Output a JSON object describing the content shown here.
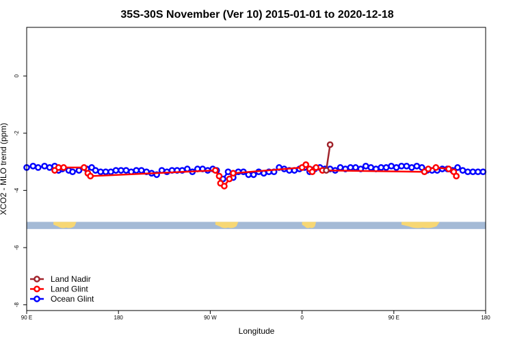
{
  "chart_data": {
    "type": "line",
    "title": "35S-30S November (Ver 10)   2015-01-01 to 2020-12-18",
    "xlabel": "Longitude",
    "ylabel": "XCO2 - MLO trend (ppm)",
    "xlim": [
      90,
      450
    ],
    "ylim": [
      -8.2,
      1.7
    ],
    "x_ticks": [
      {
        "value": 90,
        "label": "90 E"
      },
      {
        "value": 162,
        "label": "180"
      },
      {
        "value": 234,
        "label": "90 W"
      },
      {
        "value": 306,
        "label": "0"
      },
      {
        "value": 378,
        "label": "90 E"
      },
      {
        "value": 450,
        "label": "180"
      }
    ],
    "y_ticks": [
      {
        "value": 0,
        "label": "0"
      },
      {
        "value": -2,
        "label": "-2"
      },
      {
        "value": -4,
        "label": "-4"
      },
      {
        "value": -6,
        "label": "-6"
      },
      {
        "value": -8,
        "label": "-8"
      }
    ],
    "land_band": {
      "y_top": -5.1,
      "y_bottom": -5.35,
      "ocean_color": "#a4bad6",
      "land_color": "#f7d774"
    },
    "land_segments": [
      [
        111,
        129
      ],
      [
        238,
        256
      ],
      [
        306,
        317
      ],
      [
        384,
        414
      ]
    ],
    "legend_position": "bottom-left",
    "series": [
      {
        "name": "Land Nadir",
        "color": "#a0242c",
        "points": [
          [
            325,
            -3.3
          ],
          [
            328,
            -2.4
          ]
        ]
      },
      {
        "name": "Land Glint",
        "color": "#ff0000",
        "points": [
          [
            112,
            -3.3
          ],
          [
            115,
            -3.2
          ],
          [
            119,
            -3.2
          ],
          [
            135,
            -3.2
          ],
          [
            138,
            -3.4
          ],
          [
            140,
            -3.5
          ],
          [
            238,
            -3.3
          ],
          [
            241,
            -3.5
          ],
          [
            242,
            -3.75
          ],
          [
            245,
            -3.85
          ],
          [
            249,
            -3.6
          ],
          [
            252,
            -3.4
          ],
          [
            306,
            -3.2
          ],
          [
            309,
            -3.1
          ],
          [
            312,
            -3.25
          ],
          [
            314,
            -3.35
          ],
          [
            317,
            -3.2
          ],
          [
            322,
            -3.3
          ],
          [
            402,
            -3.35
          ],
          [
            405,
            -3.25
          ],
          [
            411,
            -3.2
          ],
          [
            421,
            -3.25
          ],
          [
            425,
            -3.35
          ],
          [
            427,
            -3.5
          ]
        ]
      },
      {
        "name": "Ocean Glint",
        "color": "#0000ff",
        "points": [
          [
            90,
            -3.2
          ],
          [
            95,
            -3.15
          ],
          [
            99,
            -3.2
          ],
          [
            104,
            -3.15
          ],
          [
            108,
            -3.2
          ],
          [
            112,
            -3.15
          ],
          [
            115,
            -3.3
          ],
          [
            118,
            -3.25
          ],
          [
            123,
            -3.3
          ],
          [
            126,
            -3.35
          ],
          [
            131,
            -3.3
          ],
          [
            137,
            -3.25
          ],
          [
            141,
            -3.2
          ],
          [
            144,
            -3.3
          ],
          [
            148,
            -3.35
          ],
          [
            152,
            -3.35
          ],
          [
            156,
            -3.35
          ],
          [
            160,
            -3.3
          ],
          [
            164,
            -3.3
          ],
          [
            168,
            -3.3
          ],
          [
            172,
            -3.35
          ],
          [
            176,
            -3.3
          ],
          [
            180,
            -3.3
          ],
          [
            184,
            -3.35
          ],
          [
            188,
            -3.4
          ],
          [
            192,
            -3.45
          ],
          [
            196,
            -3.3
          ],
          [
            200,
            -3.35
          ],
          [
            204,
            -3.3
          ],
          [
            208,
            -3.3
          ],
          [
            212,
            -3.3
          ],
          [
            216,
            -3.25
          ],
          [
            220,
            -3.35
          ],
          [
            224,
            -3.25
          ],
          [
            228,
            -3.25
          ],
          [
            232,
            -3.3
          ],
          [
            236,
            -3.25
          ],
          [
            239,
            -3.3
          ],
          [
            244,
            -3.6
          ],
          [
            248,
            -3.35
          ],
          [
            252,
            -3.55
          ],
          [
            256,
            -3.35
          ],
          [
            260,
            -3.35
          ],
          [
            264,
            -3.45
          ],
          [
            268,
            -3.45
          ],
          [
            272,
            -3.35
          ],
          [
            276,
            -3.4
          ],
          [
            280,
            -3.35
          ],
          [
            284,
            -3.35
          ],
          [
            288,
            -3.2
          ],
          [
            292,
            -3.25
          ],
          [
            296,
            -3.3
          ],
          [
            300,
            -3.3
          ],
          [
            304,
            -3.25
          ],
          [
            308,
            -3.2
          ],
          [
            312,
            -3.35
          ],
          [
            316,
            -3.25
          ],
          [
            320,
            -3.2
          ],
          [
            324,
            -3.25
          ],
          [
            328,
            -3.25
          ],
          [
            332,
            -3.3
          ],
          [
            336,
            -3.2
          ],
          [
            340,
            -3.25
          ],
          [
            344,
            -3.2
          ],
          [
            348,
            -3.2
          ],
          [
            352,
            -3.25
          ],
          [
            356,
            -3.15
          ],
          [
            360,
            -3.2
          ],
          [
            364,
            -3.25
          ],
          [
            368,
            -3.2
          ],
          [
            372,
            -3.2
          ],
          [
            376,
            -3.15
          ],
          [
            380,
            -3.2
          ],
          [
            384,
            -3.15
          ],
          [
            388,
            -3.15
          ],
          [
            392,
            -3.2
          ],
          [
            396,
            -3.15
          ],
          [
            400,
            -3.2
          ],
          [
            404,
            -3.3
          ],
          [
            408,
            -3.3
          ],
          [
            412,
            -3.3
          ],
          [
            416,
            -3.25
          ],
          [
            420,
            -3.25
          ],
          [
            424,
            -3.3
          ],
          [
            428,
            -3.2
          ],
          [
            432,
            -3.3
          ],
          [
            436,
            -3.35
          ],
          [
            440,
            -3.35
          ],
          [
            444,
            -3.35
          ],
          [
            448,
            -3.35
          ]
        ]
      }
    ]
  }
}
